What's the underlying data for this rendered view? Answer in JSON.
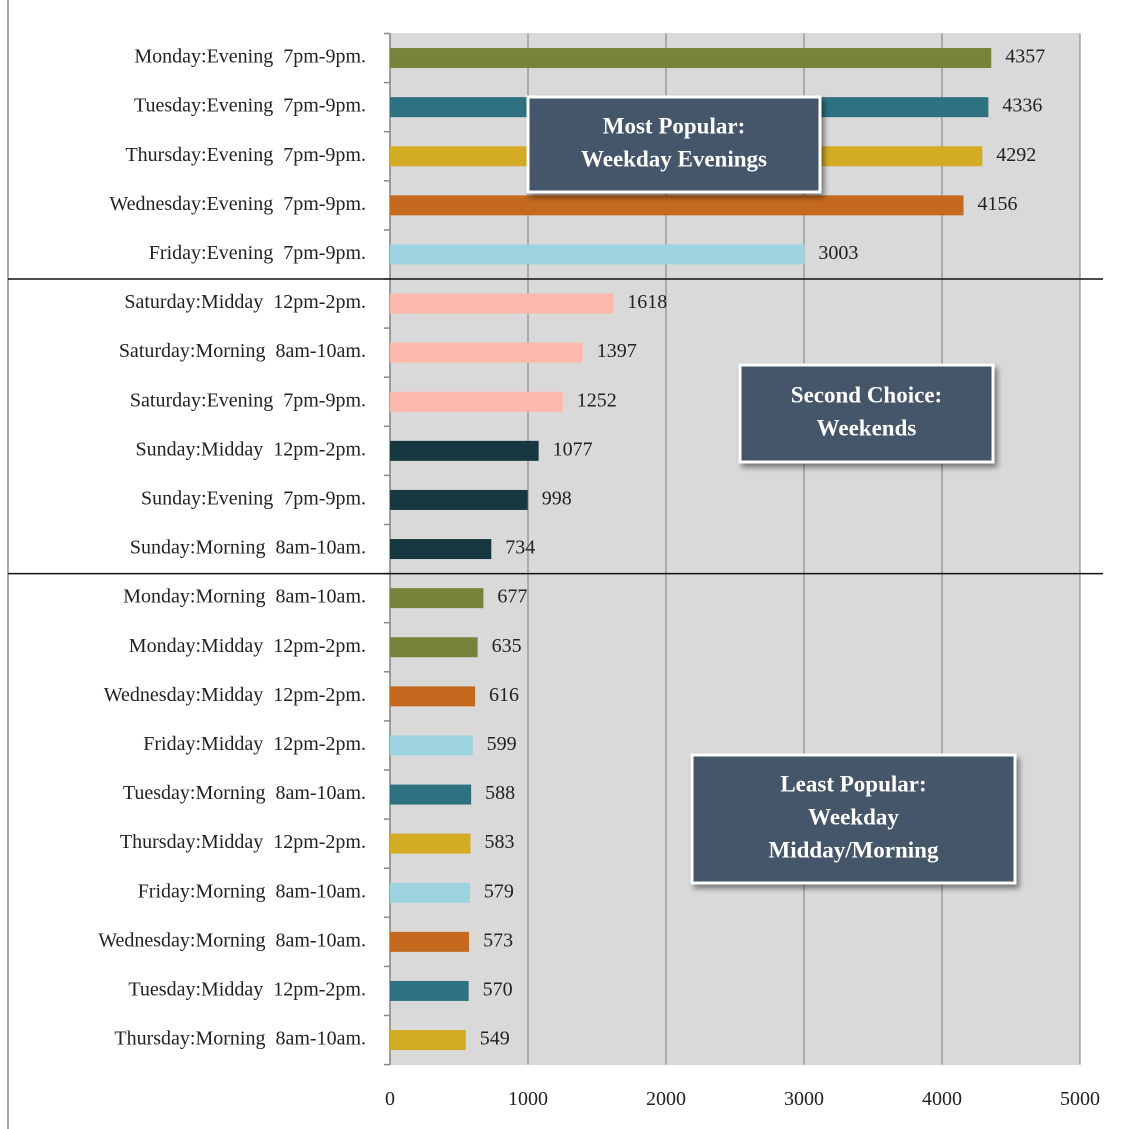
{
  "chart_data": {
    "type": "bar",
    "orientation": "horizontal",
    "categories": [
      "Monday:Evening  7pm-9pm.",
      "Tuesday:Evening  7pm-9pm.",
      "Thursday:Evening  7pm-9pm.",
      "Wednesday:Evening  7pm-9pm.",
      "Friday:Evening  7pm-9pm.",
      "Saturday:Midday  12pm-2pm.",
      "Saturday:Morning  8am-10am.",
      "Saturday:Evening  7pm-9pm.",
      "Sunday:Midday  12pm-2pm.",
      "Sunday:Evening  7pm-9pm.",
      "Sunday:Morning  8am-10am.",
      "Monday:Morning  8am-10am.",
      "Monday:Midday  12pm-2pm.",
      "Wednesday:Midday  12pm-2pm.",
      "Friday:Midday  12pm-2pm.",
      "Tuesday:Morning  8am-10am.",
      "Thursday:Midday  12pm-2pm.",
      "Friday:Morning  8am-10am.",
      "Wednesday:Morning  8am-10am.",
      "Tuesday:Midday  12pm-2pm.",
      "Thursday:Morning  8am-10am."
    ],
    "values": [
      4357,
      4336,
      4292,
      4156,
      3003,
      1618,
      1397,
      1252,
      1077,
      998,
      734,
      677,
      635,
      616,
      599,
      588,
      583,
      579,
      573,
      570,
      549
    ],
    "colors": [
      "#76843b",
      "#2e7281",
      "#d4ac24",
      "#c5691f",
      "#9dd3df",
      "#fbb8ab",
      "#fbb8ab",
      "#fbb8ab",
      "#183841",
      "#183841",
      "#183841",
      "#76843b",
      "#76843b",
      "#c5691f",
      "#9dd3df",
      "#2e7281",
      "#d4ac24",
      "#9dd3df",
      "#c5691f",
      "#2e7281",
      "#d4ac24"
    ],
    "xlim": [
      0,
      5000
    ],
    "xticks": [
      0,
      1000,
      2000,
      3000,
      4000,
      5000
    ],
    "grid": true,
    "annotations": [
      [
        "Most Popular:",
        "Weekday Evenings"
      ],
      [
        "Second Choice:",
        "Weekends"
      ],
      [
        "Least Popular:",
        "Weekday",
        "Midday/Morning"
      ]
    ]
  }
}
